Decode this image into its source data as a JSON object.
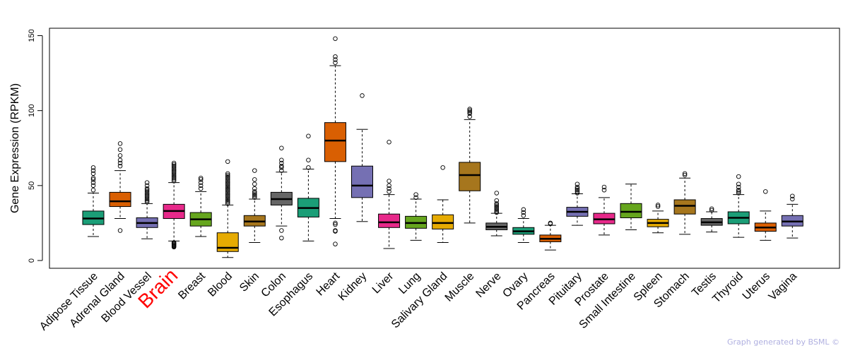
{
  "chart_data": {
    "type": "boxplot",
    "ylabel": "Gene Expression (RPKM)",
    "ylim": [
      0,
      155
    ],
    "yticks": [
      0,
      50,
      100,
      150
    ],
    "highlight_category": "Brain",
    "highlight_color": "#ff0000",
    "categories": [
      {
        "name": "Adipose Tissue",
        "color": "#1b9e77",
        "min": 16,
        "q1": 24,
        "median": 28,
        "q3": 33,
        "max": 45,
        "outliers": [
          47,
          50,
          52,
          54,
          55,
          58,
          60,
          62
        ]
      },
      {
        "name": "Adrenal Gland",
        "color": "#d95f02",
        "min": 28,
        "q1": 36,
        "median": 39.5,
        "q3": 45.5,
        "max": 60,
        "outliers": [
          20,
          63,
          65,
          67,
          70,
          74,
          78
        ]
      },
      {
        "name": "Blood Vessel",
        "color": "#7570b3",
        "min": 14.5,
        "q1": 22,
        "median": 25,
        "q3": 28.5,
        "max": 38,
        "outliers": [
          39,
          40,
          41,
          42,
          43,
          44,
          45,
          46,
          47,
          48,
          50,
          52
        ]
      },
      {
        "name": "Brain",
        "color": "#e7298a",
        "min": 13,
        "q1": 28,
        "median": 33,
        "q3": 37.5,
        "max": 52,
        "outliers": [
          9,
          9.5,
          10,
          10.5,
          11,
          11.5,
          12,
          53,
          54,
          55,
          56,
          57,
          58,
          59,
          60,
          61,
          62,
          63,
          64,
          65
        ]
      },
      {
        "name": "Breast",
        "color": "#66a61e",
        "min": 16,
        "q1": 23,
        "median": 27.5,
        "q3": 32,
        "max": 46,
        "outliers": [
          48,
          50,
          52,
          54,
          55
        ]
      },
      {
        "name": "Blood",
        "color": "#e6ab02",
        "min": 2,
        "q1": 6,
        "median": 8.5,
        "q3": 18.5,
        "max": 37,
        "outliers": [
          38,
          39,
          40,
          41,
          42,
          43,
          44,
          45,
          46,
          47,
          48,
          49,
          50,
          51,
          52,
          53,
          54,
          55,
          56,
          57,
          58,
          66
        ]
      },
      {
        "name": "Skin",
        "color": "#a6761d",
        "min": 12,
        "q1": 23,
        "median": 26,
        "q3": 30,
        "max": 41,
        "outliers": [
          42,
          43,
          44,
          45,
          46,
          48,
          51,
          54,
          60
        ]
      },
      {
        "name": "Colon",
        "color": "#666666",
        "min": 23,
        "q1": 37,
        "median": 41,
        "q3": 45.5,
        "max": 59,
        "outliers": [
          15,
          20,
          60,
          62,
          63,
          65,
          67,
          75
        ]
      },
      {
        "name": "Esophagus",
        "color": "#1b9e77",
        "min": 13,
        "q1": 29,
        "median": 35,
        "q3": 41.5,
        "max": 61,
        "outliers": [
          62,
          67,
          83
        ]
      },
      {
        "name": "Heart",
        "color": "#d95f02",
        "min": 28,
        "q1": 66,
        "median": 80,
        "q3": 92,
        "max": 130,
        "outliers": [
          11,
          19.5,
          20,
          24,
          25,
          132,
          134,
          136,
          148
        ]
      },
      {
        "name": "Kidney",
        "color": "#7570b3",
        "min": 26,
        "q1": 42,
        "median": 50,
        "q3": 63,
        "max": 87.5,
        "outliers": [
          110
        ]
      },
      {
        "name": "Liver",
        "color": "#e7298a",
        "min": 8,
        "q1": 22,
        "median": 25.5,
        "q3": 31,
        "max": 44,
        "outliers": [
          46,
          48,
          50,
          53,
          79
        ]
      },
      {
        "name": "Lung",
        "color": "#66a61e",
        "min": 13.5,
        "q1": 21.5,
        "median": 25,
        "q3": 29.5,
        "max": 41,
        "outliers": [
          42,
          44
        ]
      },
      {
        "name": "Salivary Gland",
        "color": "#e6ab02",
        "min": 12,
        "q1": 21,
        "median": 25,
        "q3": 30.5,
        "max": 40.5,
        "outliers": [
          62
        ]
      },
      {
        "name": "Muscle",
        "color": "#a6761d",
        "min": 25,
        "q1": 46.5,
        "median": 57,
        "q3": 65.5,
        "max": 94,
        "outliers": [
          96,
          98,
          99,
          100,
          101
        ]
      },
      {
        "name": "Nerve",
        "color": "#666666",
        "min": 16.5,
        "q1": 20.5,
        "median": 22.5,
        "q3": 25,
        "max": 31.5,
        "outliers": [
          32,
          33,
          34,
          35,
          36,
          37,
          38,
          40,
          45
        ]
      },
      {
        "name": "Ovary",
        "color": "#1b9e77",
        "min": 12,
        "q1": 17.5,
        "median": 19.5,
        "q3": 22,
        "max": 28,
        "outliers": [
          30,
          32,
          34
        ]
      },
      {
        "name": "Pancreas",
        "color": "#d95f02",
        "min": 7,
        "q1": 12.5,
        "median": 14.5,
        "q3": 17,
        "max": 23.5,
        "outliers": [
          24.5,
          25
        ]
      },
      {
        "name": "Pituitary",
        "color": "#7570b3",
        "min": 23.5,
        "q1": 29.5,
        "median": 32.5,
        "q3": 35.5,
        "max": 44.5,
        "outliers": [
          45,
          46,
          47,
          48,
          49,
          51
        ]
      },
      {
        "name": "Prostate",
        "color": "#e7298a",
        "min": 17,
        "q1": 24.5,
        "median": 27.5,
        "q3": 31.5,
        "max": 42,
        "outliers": [
          47,
          49
        ]
      },
      {
        "name": "Small Intestine",
        "color": "#66a61e",
        "min": 20.5,
        "q1": 28.5,
        "median": 32.5,
        "q3": 38,
        "max": 51,
        "outliers": []
      },
      {
        "name": "Spleen",
        "color": "#e6ab02",
        "min": 18.5,
        "q1": 22.5,
        "median": 25,
        "q3": 27.5,
        "max": 33,
        "outliers": [
          36,
          37
        ]
      },
      {
        "name": "Stomach",
        "color": "#a6761d",
        "min": 17.5,
        "q1": 31,
        "median": 36.5,
        "q3": 40.5,
        "max": 55,
        "outliers": [
          57,
          58
        ]
      },
      {
        "name": "Testis",
        "color": "#666666",
        "min": 19,
        "q1": 23.5,
        "median": 25.5,
        "q3": 28,
        "max": 32.5,
        "outliers": [
          33.5,
          34.5
        ]
      },
      {
        "name": "Thyroid",
        "color": "#1b9e77",
        "min": 15.5,
        "q1": 24.5,
        "median": 28.5,
        "q3": 32.5,
        "max": 44,
        "outliers": [
          45,
          46,
          47,
          49,
          51,
          56
        ]
      },
      {
        "name": "Uterus",
        "color": "#d95f02",
        "min": 13.5,
        "q1": 19.5,
        "median": 22,
        "q3": 25,
        "max": 33,
        "outliers": [
          46
        ]
      },
      {
        "name": "Vagina",
        "color": "#7570b3",
        "min": 15,
        "q1": 23,
        "median": 26,
        "q3": 30,
        "max": 37.5,
        "outliers": [
          41,
          43
        ]
      }
    ]
  },
  "footer": {
    "credit": "Graph generated by BSML ©"
  }
}
